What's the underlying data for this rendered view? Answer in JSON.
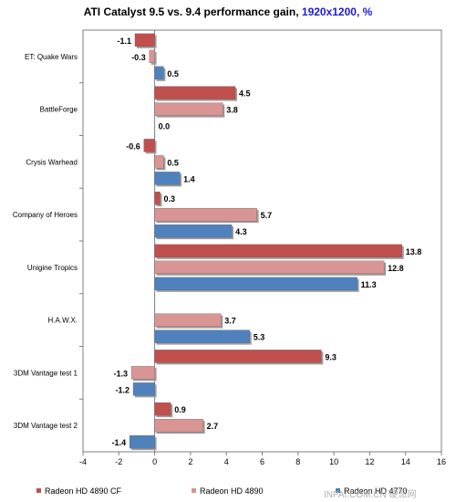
{
  "title": {
    "main": "ATI Catalyst 9.5 vs. 9.4 performance gain, ",
    "sub": "1920x1200, %"
  },
  "watermark": "INPAI.COM.CN 硬派网",
  "chart_data": {
    "type": "bar",
    "orientation": "horizontal",
    "title": "ATI Catalyst 9.5 vs. 9.4 performance gain, 1920x1200, %",
    "categories": [
      "ET: Quake Wars",
      "BattleForge",
      "Crysis Warhead",
      "Company of Heroes",
      "Unigine Tropics",
      "H.A.W.X.",
      "3DM Vantage test 1",
      "3DM Vantage test 2"
    ],
    "series": [
      {
        "name": "Radeon HD 4890 CF",
        "color": "#c0504d",
        "values": [
          -1.1,
          4.5,
          -0.6,
          0.3,
          13.8,
          null,
          9.3,
          0.9
        ]
      },
      {
        "name": "Radeon HD 4890",
        "color": "#d99594",
        "values": [
          -0.3,
          3.8,
          0.5,
          5.7,
          12.8,
          3.7,
          -1.3,
          2.7
        ]
      },
      {
        "name": "Radeon HD 4770",
        "color": "#4f81bd",
        "values": [
          0.5,
          0.0,
          1.4,
          4.3,
          11.3,
          5.3,
          -1.2,
          -1.4
        ]
      }
    ],
    "value_labels": [
      [
        "-1.1",
        "4.5",
        "-0.6",
        "0.3",
        "13.8",
        "",
        "9.3",
        "0.9"
      ],
      [
        "-0.3",
        "3.8",
        "0.5",
        "5.7",
        "12.8",
        "3.7",
        "-1.3",
        "2.7"
      ],
      [
        "0.5",
        "0.0",
        "1.4",
        "4.3",
        "11.3",
        "5.3",
        "-1.2",
        "-1.4"
      ]
    ],
    "xlim": [
      -4,
      16
    ],
    "xticks": [
      -4,
      -2,
      0,
      2,
      4,
      6,
      8,
      10,
      12,
      14,
      16
    ],
    "grid": false,
    "legend_position": "bottom"
  }
}
